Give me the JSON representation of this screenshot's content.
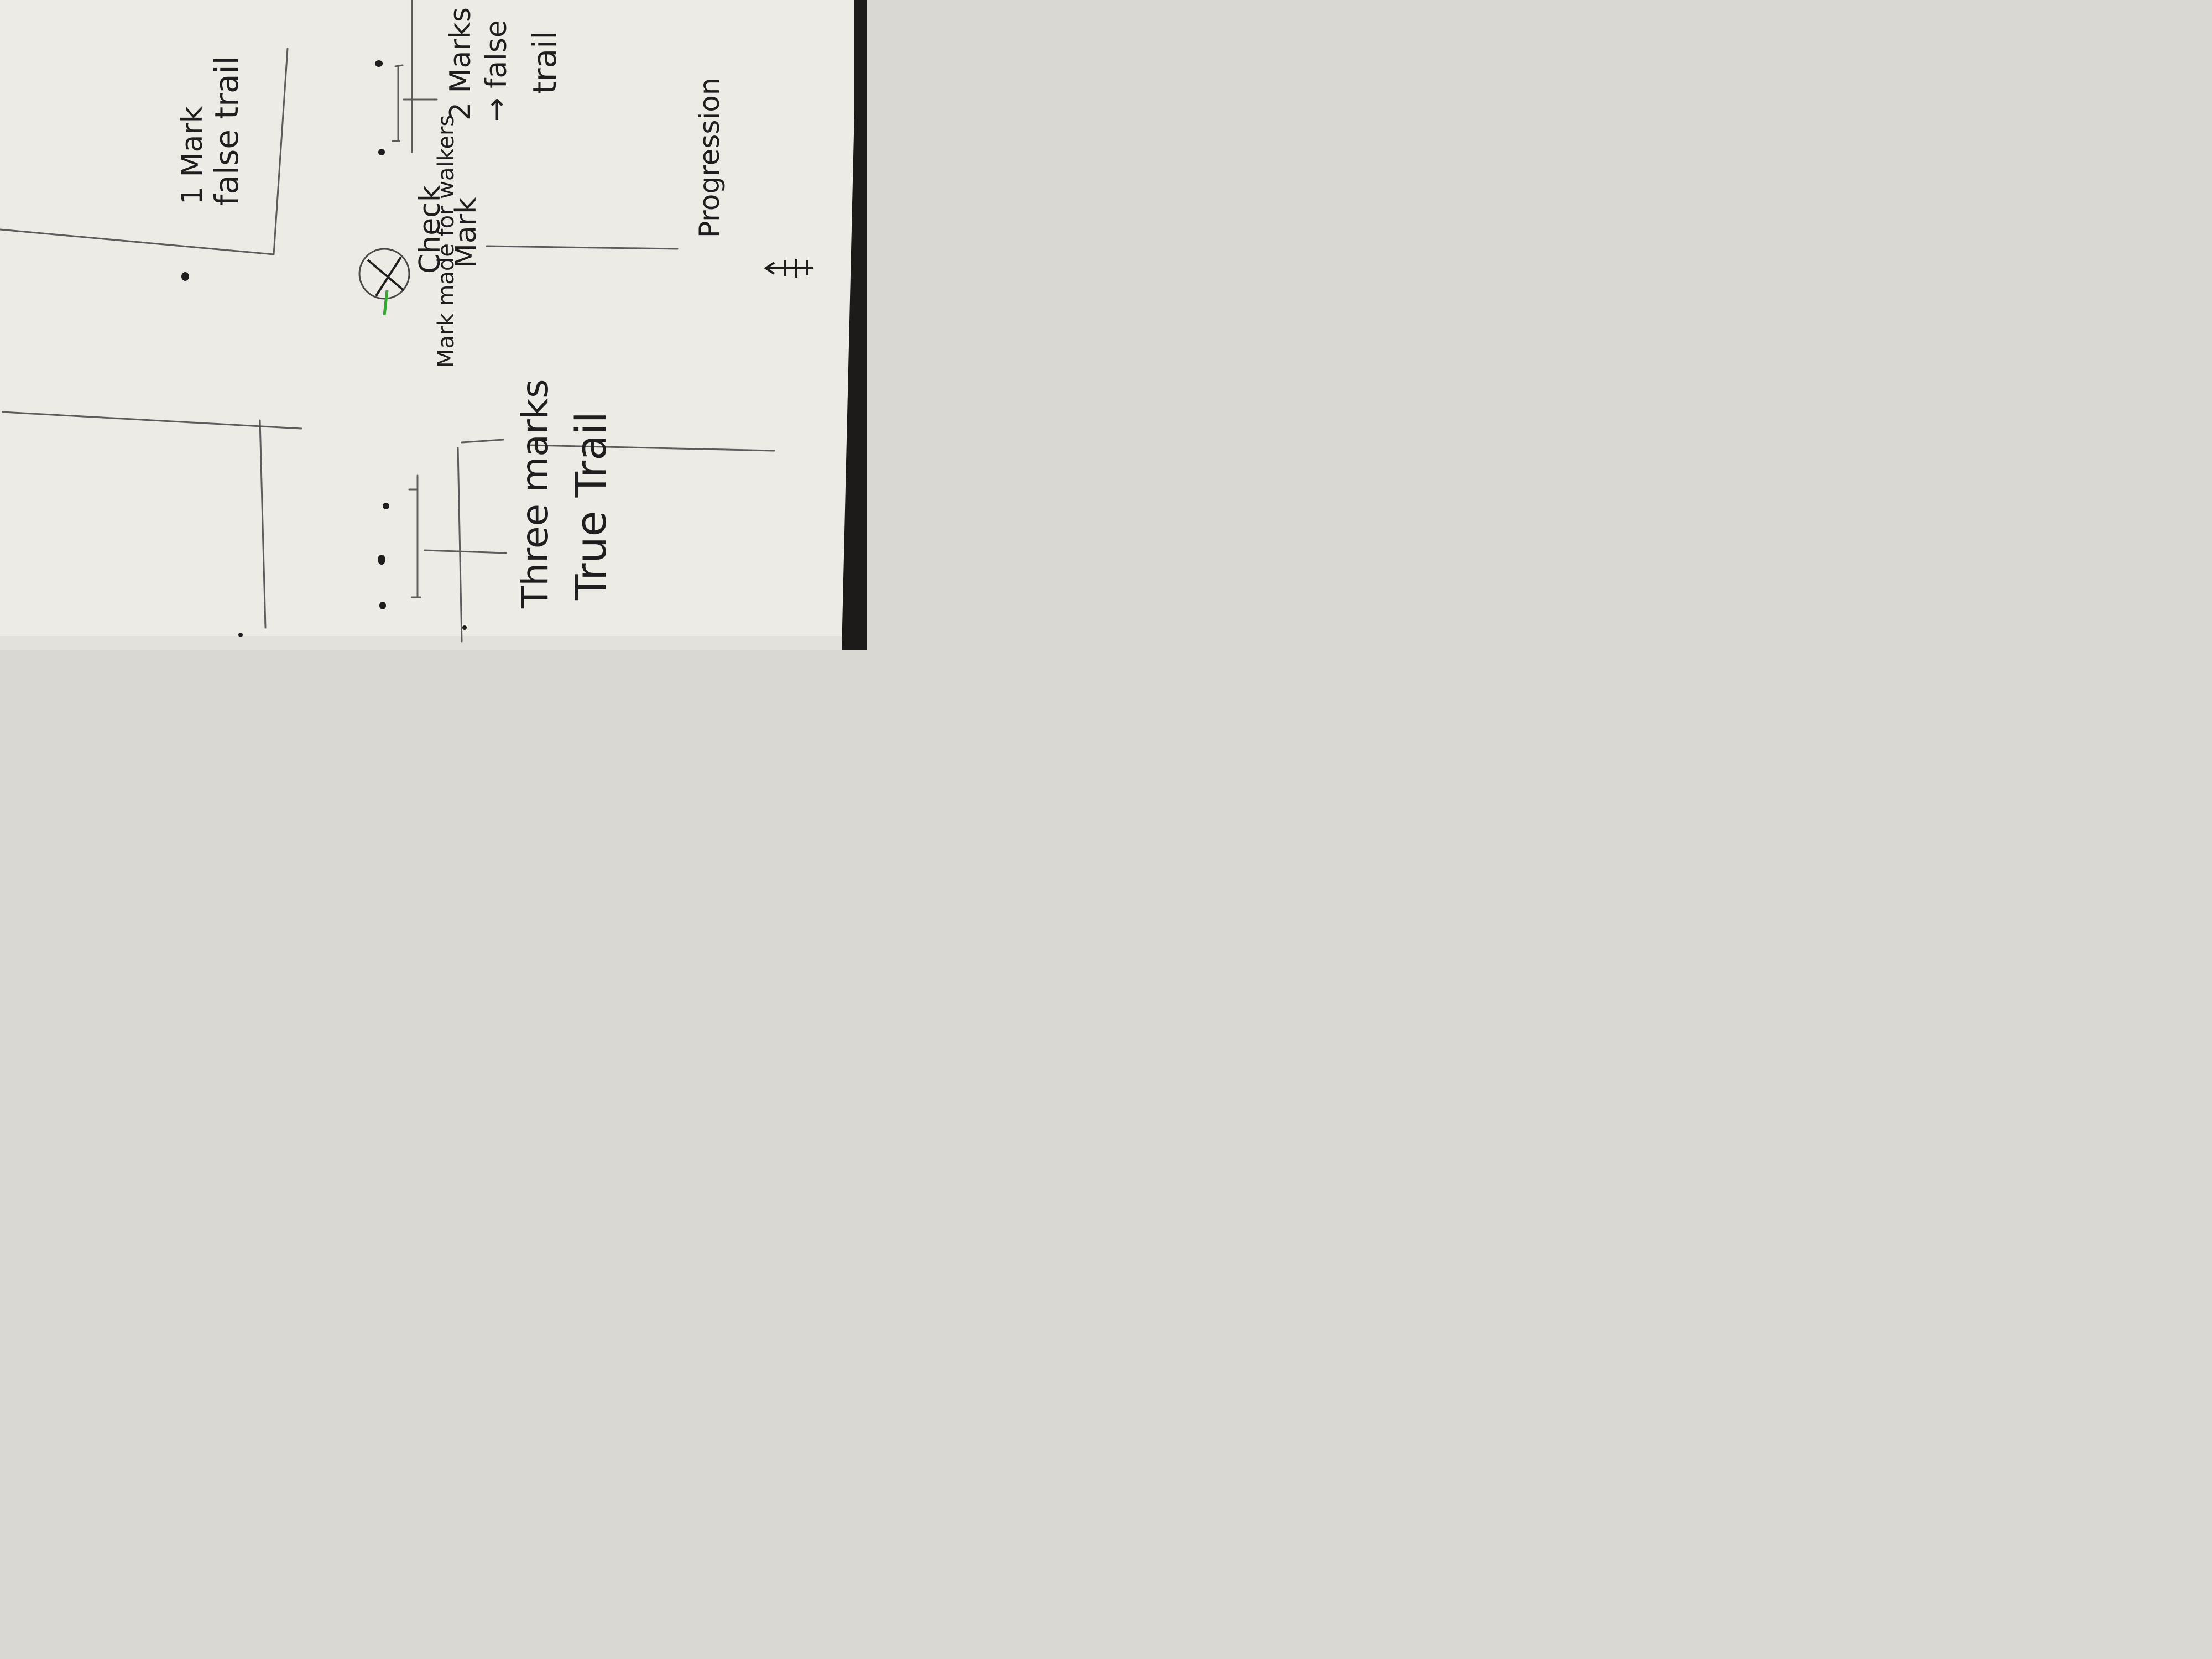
{
  "notes": {
    "one_mark": "1 Mark",
    "one_mark_meaning": "false trail",
    "two_marks": "2 Marks",
    "two_marks_meaning": "→ false",
    "two_marks_meaning_2": "trail",
    "check": "Check",
    "mark": "Mark",
    "mark_made": "Mark made for walkers",
    "three_marks": "Three marks",
    "true_trail": "True Trail",
    "progression": "Progression"
  },
  "colors": {
    "paper": "#ecebe6",
    "pencil": "#5c5c5c",
    "ink": "#1e1e1e",
    "green_mark": "#2fa82f",
    "background": "#1c1b19"
  }
}
